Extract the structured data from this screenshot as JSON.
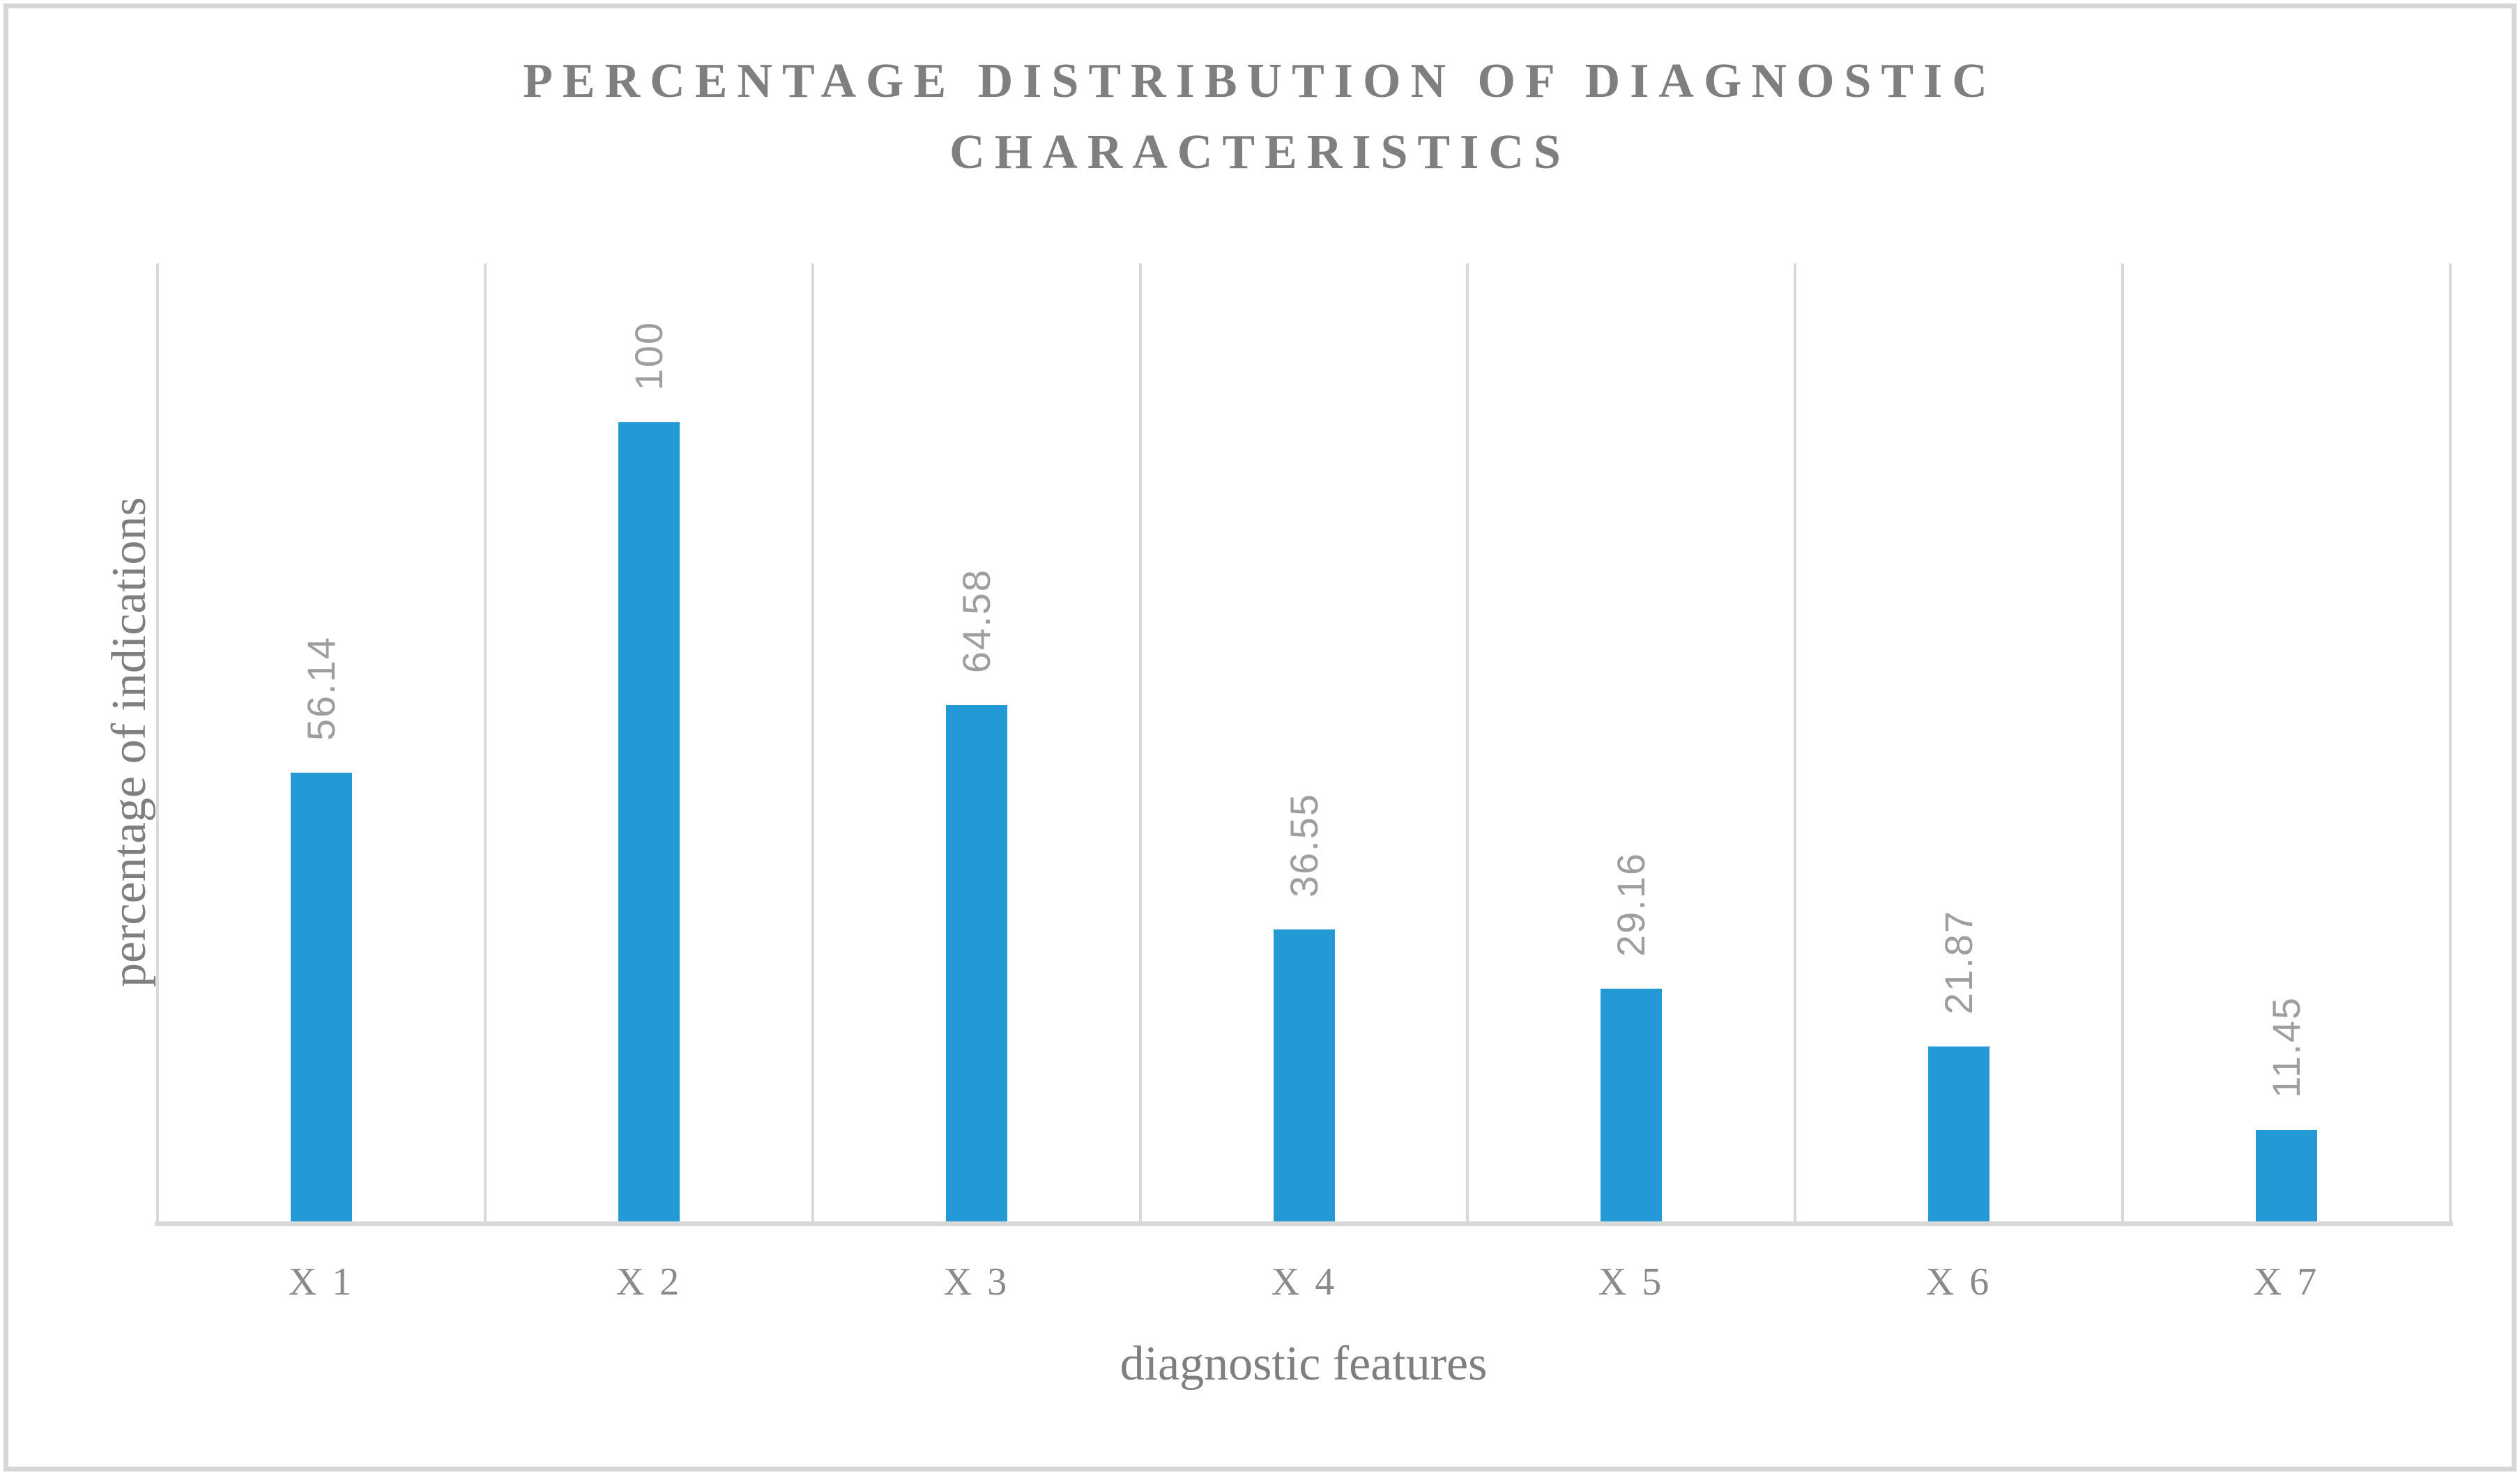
{
  "title": {
    "line1": "PERCENTAGE DISTRIBUTION OF DIAGNOSTIC",
    "line2": "CHARACTERISTICS"
  },
  "chart_data": {
    "type": "bar",
    "title": "PERCENTAGE DISTRIBUTION OF DIAGNOSTIC CHARACTERISTICS",
    "categories": [
      "X 1",
      "X 2",
      "X 3",
      "X 4",
      "X 5",
      "X 6",
      "X 7"
    ],
    "values": [
      56.14,
      100,
      64.58,
      36.55,
      29.16,
      21.87,
      11.45
    ],
    "value_labels": [
      "56.14",
      "100",
      "64.58",
      "36.55",
      "29.16",
      "21.87",
      "11.45"
    ],
    "xlabel": "diagnostic features",
    "ylabel": "percentage of indications",
    "ylim": [
      0,
      120
    ],
    "value_axis_visible": false,
    "gridlines": "vertical-category-boundaries",
    "data_label_rotation": "90deg-counterclockwise",
    "legend": "none"
  },
  "colors": {
    "bar": "#2399D5",
    "grid": "#D9D9D9",
    "frame": "#D6D6D6",
    "title_text": "#7F7F7F",
    "axis_title_text": "#7F7F7F",
    "category_label_text": "#8A8A8A",
    "data_label_text": "#9E9E9E",
    "background": "#FFFFFF"
  }
}
